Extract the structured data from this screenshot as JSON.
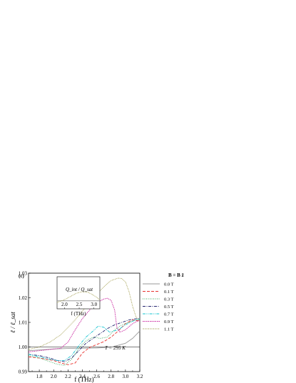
{
  "chart_data": {
    "type": "line",
    "panel_label": "(c)",
    "xlabel": "f (THz)",
    "ylabel": "ℓ / ℓ_sat",
    "xlim": [
      1.65,
      3.2
    ],
    "ylim": [
      0.99,
      1.03
    ],
    "xticks": [
      "1.8",
      "2.0",
      "2.2",
      "2.4",
      "2.6",
      "2.8",
      "3.0",
      "3.2"
    ],
    "yticks": [
      "0.99",
      "1.00",
      "1.01",
      "1.02",
      "1.03"
    ],
    "annotation": "T = 295 K",
    "legend_title": "B = B ẑ",
    "legend_position": "right",
    "series": [
      {
        "name": "0.0 T",
        "color": "#999999",
        "dash": "solid",
        "x": [
          1.65,
          1.8,
          2.0,
          2.2,
          2.4,
          2.6,
          2.8,
          3.0,
          3.1,
          3.2
        ],
        "y": [
          0.9985,
          0.9988,
          0.9992,
          0.9994,
          0.9995,
          0.9996,
          0.9999,
          1.0015,
          1.0035,
          1.0065
        ]
      },
      {
        "name": "0.1 T",
        "color": "#e8322d",
        "dash": "dash",
        "x": [
          1.65,
          1.8,
          2.0,
          2.1,
          2.2,
          2.3,
          2.4,
          2.5,
          2.6,
          2.7,
          2.8,
          2.9,
          3.0,
          3.1,
          3.2
        ],
        "y": [
          0.996,
          0.9955,
          0.9945,
          0.9935,
          0.9928,
          0.9935,
          0.9975,
          0.9998,
          1.001,
          1.0022,
          1.004,
          1.0065,
          1.0095,
          1.011,
          1.0105
        ]
      },
      {
        "name": "0.3 T",
        "color": "#39a85a",
        "dash": "dot",
        "x": [
          1.65,
          1.8,
          1.95,
          2.05,
          2.15,
          2.25,
          2.35,
          2.45,
          2.55,
          2.65,
          2.75,
          2.85,
          2.95,
          3.05,
          3.15,
          3.2
        ],
        "y": [
          0.9965,
          0.9955,
          0.994,
          0.993,
          0.9925,
          0.995,
          0.9995,
          1.0025,
          1.004,
          1.0035,
          1.004,
          1.007,
          1.009,
          1.01,
          1.011,
          1.011
        ]
      },
      {
        "name": "0.5 T",
        "color": "#23236e",
        "dash": "dashdot",
        "x": [
          1.65,
          1.8,
          1.95,
          2.05,
          2.15,
          2.25,
          2.35,
          2.45,
          2.55,
          2.65,
          2.75,
          2.85,
          2.95,
          3.05,
          3.15,
          3.2
        ],
        "y": [
          0.997,
          0.9965,
          0.9955,
          0.9945,
          0.994,
          0.9955,
          0.9985,
          1.0015,
          1.0035,
          1.0055,
          1.0075,
          1.009,
          1.01,
          1.011,
          1.0115,
          1.0115
        ]
      },
      {
        "name": "0.7 T",
        "color": "#14c4d2",
        "dash": "dashdotdot",
        "x": [
          1.65,
          1.8,
          1.95,
          2.05,
          2.15,
          2.25,
          2.35,
          2.45,
          2.55,
          2.62,
          2.7,
          2.78,
          2.9,
          3.0,
          3.1,
          3.2
        ],
        "y": [
          0.997,
          0.996,
          0.995,
          0.9945,
          0.9945,
          0.9965,
          1.0005,
          1.004,
          1.0065,
          1.0085,
          1.008,
          1.006,
          1.007,
          1.009,
          1.0105,
          1.0115
        ]
      },
      {
        "name": "0.9 T",
        "color": "#c8229e",
        "dash": "shortdot",
        "x": [
          1.65,
          1.8,
          1.95,
          2.1,
          2.2,
          2.3,
          2.4,
          2.5,
          2.6,
          2.7,
          2.75,
          2.8,
          2.85,
          2.88,
          2.92,
          3.0,
          3.1,
          3.2
        ],
        "y": [
          0.998,
          0.9985,
          0.999,
          0.9995,
          1.002,
          1.007,
          1.0115,
          1.015,
          1.018,
          1.0195,
          1.0198,
          1.019,
          1.015,
          1.008,
          1.006,
          1.007,
          1.0095,
          1.011
        ]
      },
      {
        "name": "1.1 T",
        "color": "#8f8a2a",
        "dash": "finedot",
        "x": [
          1.65,
          1.8,
          1.95,
          2.1,
          2.2,
          2.3,
          2.4,
          2.5,
          2.6,
          2.7,
          2.8,
          2.9,
          2.95,
          3.0,
          3.05,
          3.1,
          3.15,
          3.2
        ],
        "y": [
          0.999,
          1.0,
          1.002,
          1.005,
          1.008,
          1.011,
          1.0145,
          1.018,
          1.0215,
          1.0245,
          1.027,
          1.028,
          1.0278,
          1.0265,
          1.0225,
          1.0165,
          1.012,
          1.011
        ]
      }
    ],
    "inset": {
      "ylabel": "Q_int / Q_sat",
      "xlabel": "f (THz)",
      "xlim": [
        1.75,
        3.2
      ],
      "ylim": [
        0.85,
        1.45
      ],
      "xticks": [
        "2.0",
        "2.5",
        "3.0"
      ],
      "series": [
        {
          "name": "0.0 T",
          "color": "#999999",
          "x": [
            1.75,
            2.0,
            2.3,
            2.6,
            2.9,
            3.2
          ],
          "y": [
            1.0,
            1.0,
            1.0,
            1.0,
            1.0,
            1.0
          ]
        },
        {
          "name": "1.1 T",
          "color": "#8f8a2a",
          "x": [
            1.75,
            2.0,
            2.2,
            2.4,
            2.6,
            2.8,
            3.0,
            3.2
          ],
          "y": [
            0.97,
            1.02,
            1.08,
            1.14,
            1.17,
            1.16,
            1.1,
            1.02
          ]
        }
      ]
    }
  }
}
